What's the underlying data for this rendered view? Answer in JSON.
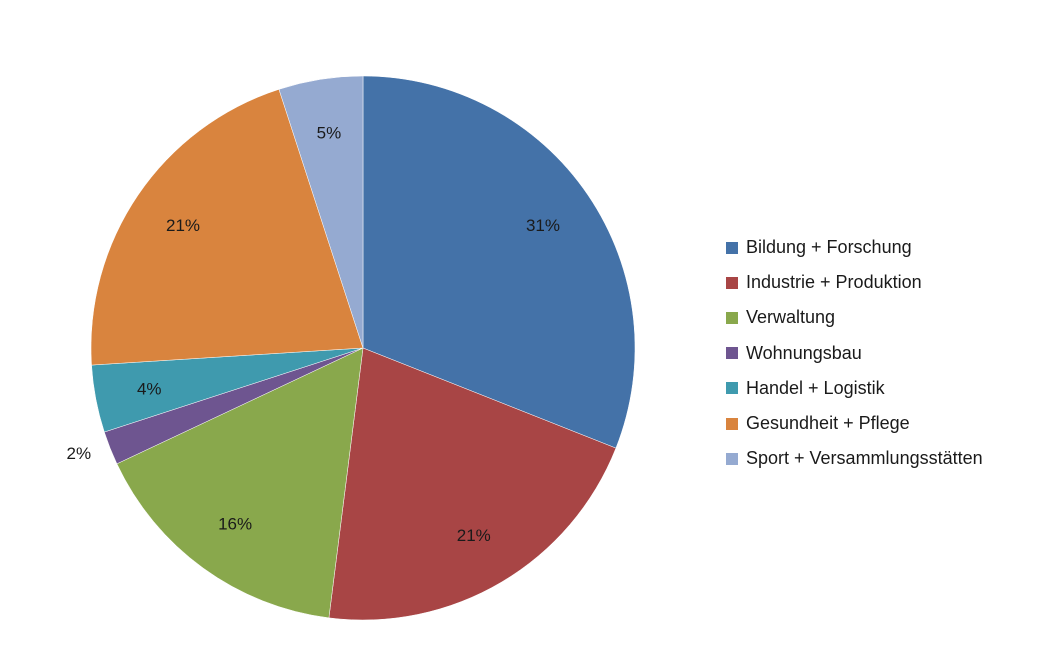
{
  "chart_data": {
    "type": "pie",
    "title": "",
    "legend_position": "right",
    "start_angle_deg": 0,
    "direction": "clockwise",
    "slices": [
      {
        "label": "Bildung + Forschung",
        "value": 31,
        "display": "31%",
        "color": "#4472A8"
      },
      {
        "label": "Industrie + Produktion",
        "value": 21,
        "display": "21%",
        "color": "#A84545"
      },
      {
        "label": "Verwaltung",
        "value": 16,
        "display": "16%",
        "color": "#89A84C"
      },
      {
        "label": "Wohnungsbau",
        "value": 2,
        "display": "2%",
        "color": "#6E5590"
      },
      {
        "label": "Handel + Logistik",
        "value": 4,
        "display": "4%",
        "color": "#3F9AAE"
      },
      {
        "label": "Gesundheit + Pflege",
        "value": 21,
        "display": "21%",
        "color": "#D9843E"
      },
      {
        "label": "Sport + Versammlungsstätten",
        "value": 5,
        "display": "5%",
        "color": "#95AAD1"
      }
    ]
  }
}
